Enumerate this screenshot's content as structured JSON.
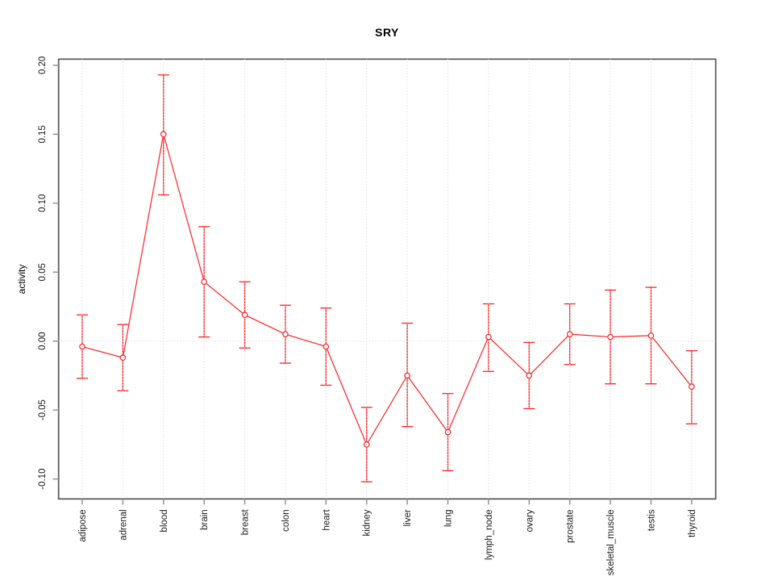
{
  "window": {
    "background": "#ffffff"
  },
  "chart_data": {
    "type": "line",
    "title": "SRY",
    "xlabel": "",
    "ylabel": "activity",
    "legend": "none",
    "marker": "open-circle",
    "error_bars": true,
    "grid": "vertical dotted gridline per category, dotted horizontal line at 0",
    "categories": [
      "adipose",
      "adrenal",
      "blood",
      "brain",
      "breast",
      "colon",
      "heart",
      "kidney",
      "liver",
      "lung",
      "lymph_node",
      "ovary",
      "prostate",
      "skeletal_muscle",
      "testis",
      "thyroid"
    ],
    "series": [
      {
        "name": "SRY activity",
        "values": [
          -0.004,
          -0.012,
          0.15,
          0.043,
          0.019,
          0.005,
          -0.004,
          -0.075,
          -0.025,
          -0.066,
          0.003,
          -0.025,
          0.005,
          0.003,
          0.004,
          -0.033
        ],
        "error_high": [
          0.019,
          0.012,
          0.193,
          0.083,
          0.043,
          0.026,
          0.024,
          -0.048,
          0.013,
          -0.038,
          0.027,
          -0.001,
          0.027,
          0.037,
          0.039,
          -0.007
        ],
        "error_low": [
          -0.027,
          -0.036,
          0.106,
          0.003,
          -0.005,
          -0.016,
          -0.032,
          -0.102,
          -0.062,
          -0.094,
          -0.022,
          -0.049,
          -0.017,
          -0.031,
          -0.031,
          -0.06
        ]
      }
    ],
    "yticks": [
      "0.20",
      "0.15",
      "0.10",
      "0.05",
      "0.00",
      "-0.05",
      "-0.10"
    ],
    "ylim": [
      -0.115,
      0.205
    ],
    "colors": {
      "series": "#ff2222",
      "grid": "#d2d2d2",
      "frame": "#5f5f5f",
      "tick": "#8c8c8c",
      "text": "#1a1a1a",
      "background": "#ffffff"
    }
  }
}
